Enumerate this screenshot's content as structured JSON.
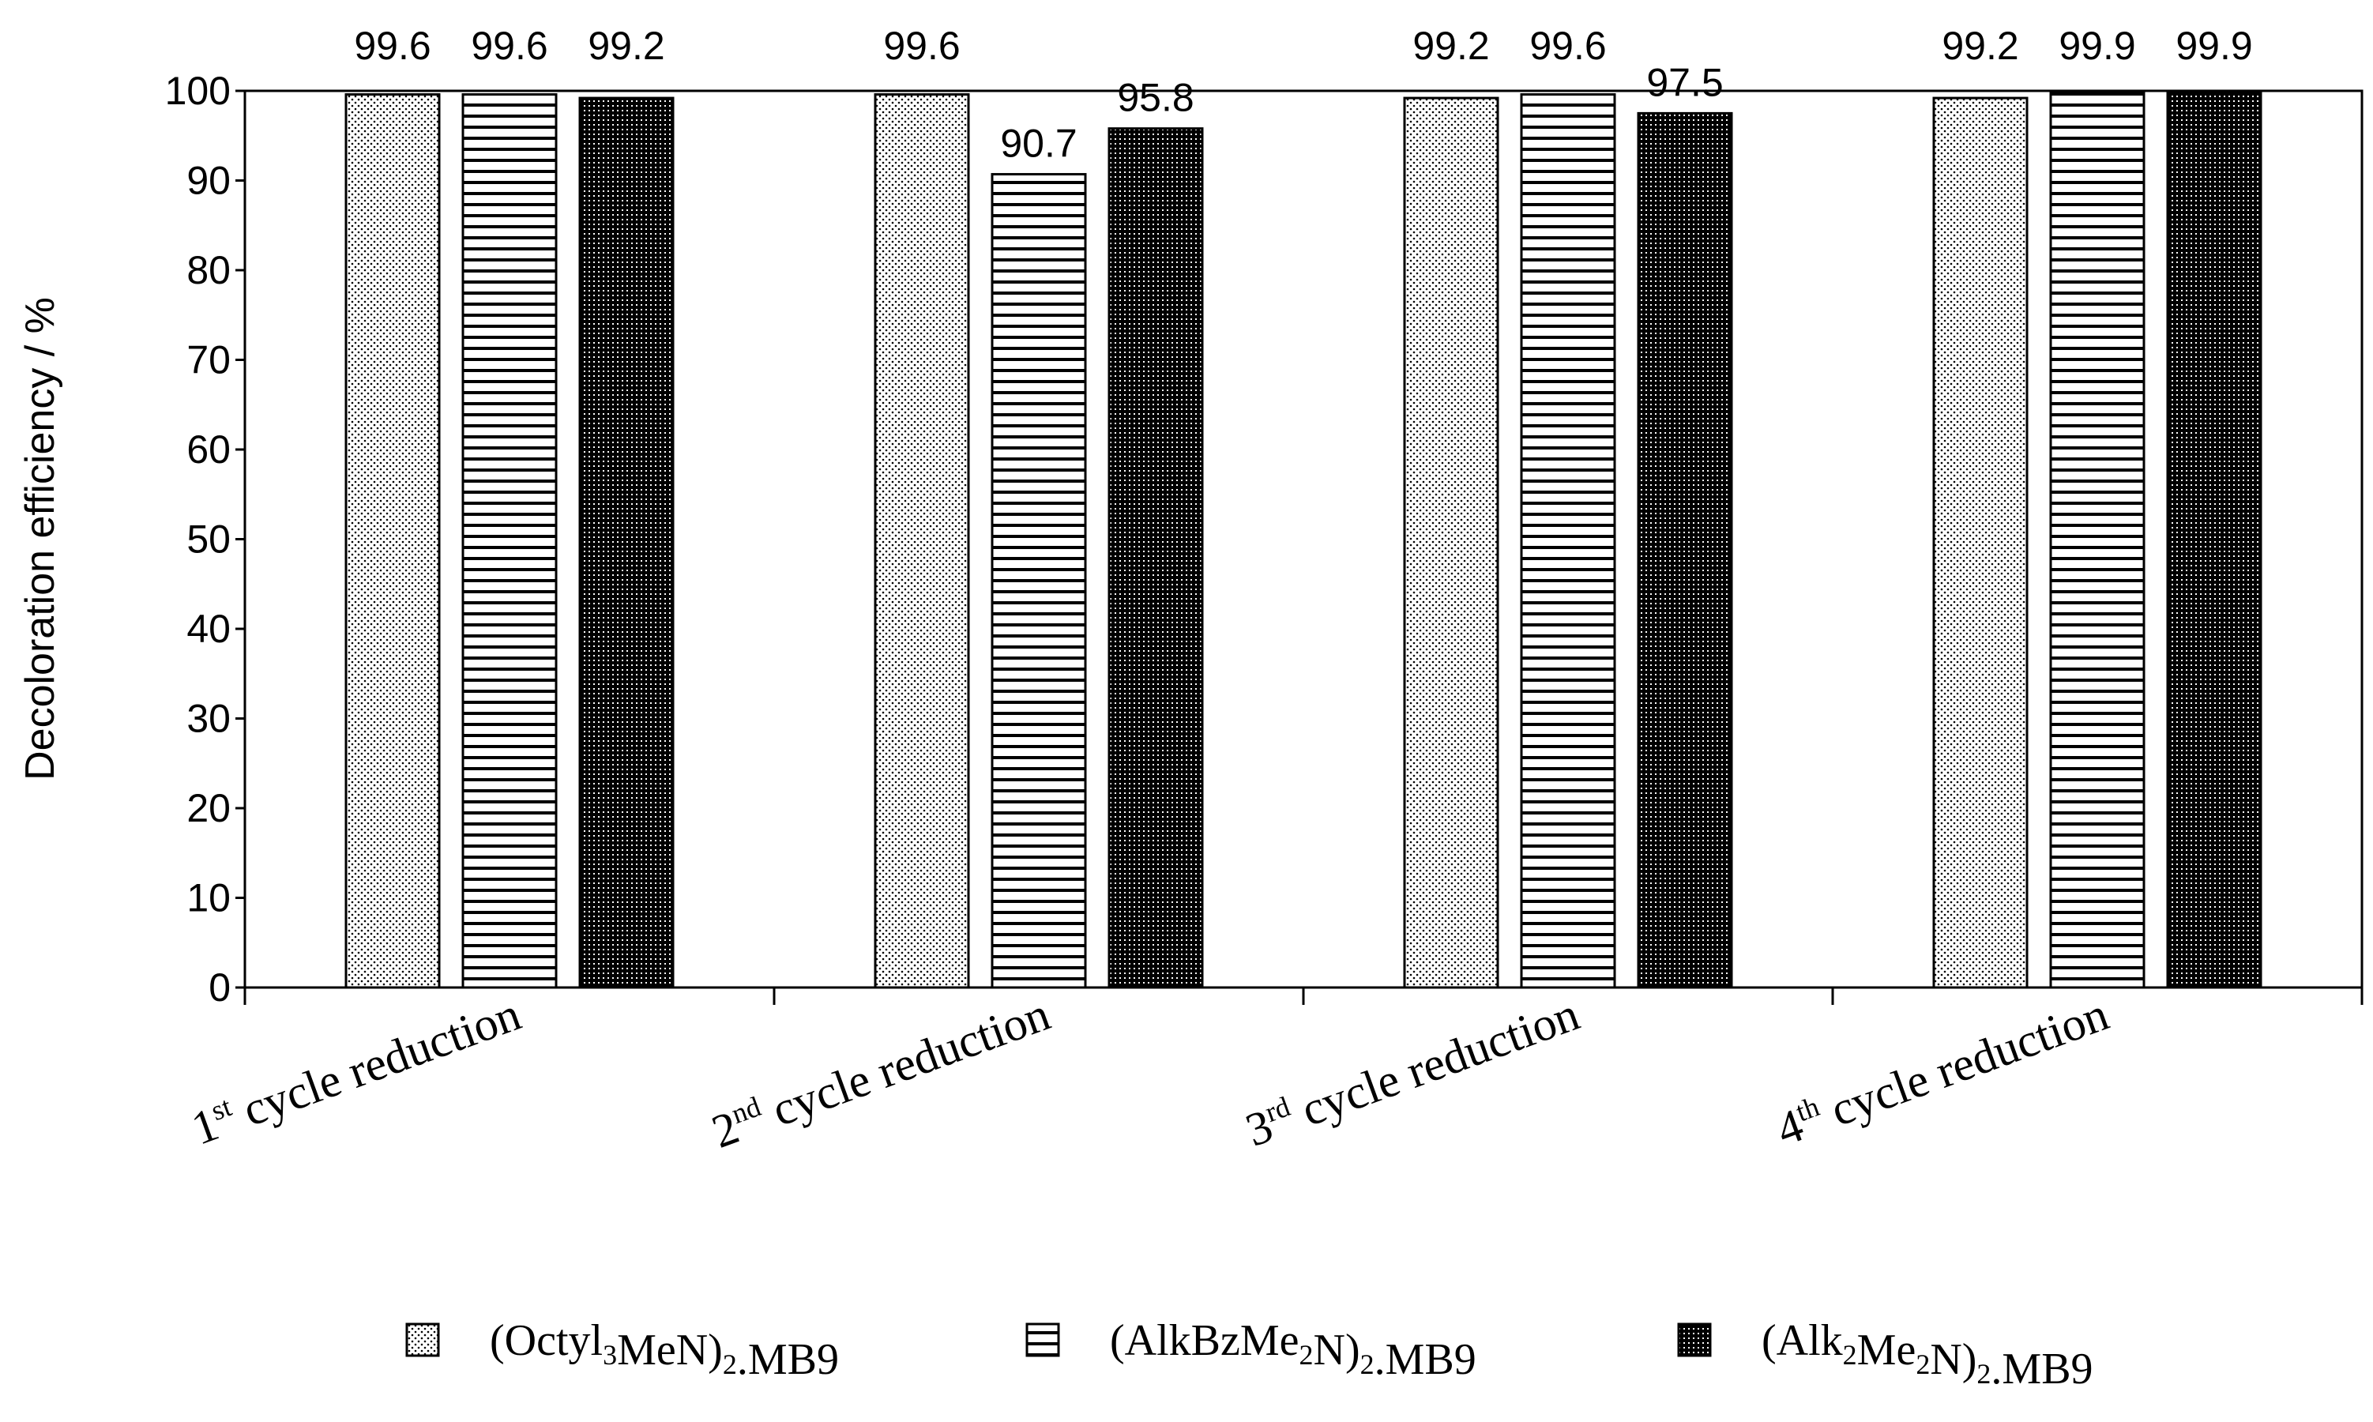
{
  "chart_data": {
    "type": "bar",
    "title": "",
    "xlabel": "",
    "ylabel": "Decoloration efficiency / %",
    "ylim": [
      0,
      100
    ],
    "ytick_step": 10,
    "grid": false,
    "legend_position": "bottom",
    "categories": [
      {
        "label": "1st cycle reduction",
        "num": "1",
        "sup": "st",
        "rest": " cycle reduction"
      },
      {
        "label": "2nd cycle reduction",
        "num": "2",
        "sup": "nd",
        "rest": " cycle reduction"
      },
      {
        "label": "3rd cycle reduction",
        "num": "3",
        "sup": "rd",
        "rest": " cycle reduction"
      },
      {
        "label": "4th cycle reduction",
        "num": "4",
        "sup": "th",
        "rest": " cycle reduction"
      }
    ],
    "series": [
      {
        "name": "(Octyl3MeN)2.MB9",
        "pattern": "dots",
        "name_parts": [
          {
            "t": "(Octyl"
          },
          {
            "t": "3",
            "sub": true
          },
          {
            "t": "MeN)"
          },
          {
            "t": "2",
            "sub": true
          },
          {
            "t": ".MB9"
          }
        ],
        "values": [
          99.6,
          99.6,
          99.2,
          99.2
        ]
      },
      {
        "name": "(AlkBzMe2N)2.MB9",
        "pattern": "hlines",
        "name_parts": [
          {
            "t": "(AlkBzMe"
          },
          {
            "t": "2",
            "sub": true
          },
          {
            "t": "N)"
          },
          {
            "t": "2",
            "sub": true
          },
          {
            "t": ".MB9"
          }
        ],
        "values": [
          99.6,
          90.7,
          99.6,
          99.9
        ]
      },
      {
        "name": "(Alk2Me2N)2.MB9",
        "pattern": "dense",
        "name_parts": [
          {
            "t": "(Alk"
          },
          {
            "t": "2",
            "sub": true
          },
          {
            "t": "Me"
          },
          {
            "t": "2",
            "sub": true
          },
          {
            "t": "N)"
          },
          {
            "t": "2",
            "sub": true
          },
          {
            "t": ".MB9"
          }
        ],
        "values": [
          99.2,
          95.8,
          97.5,
          99.9
        ]
      }
    ]
  }
}
